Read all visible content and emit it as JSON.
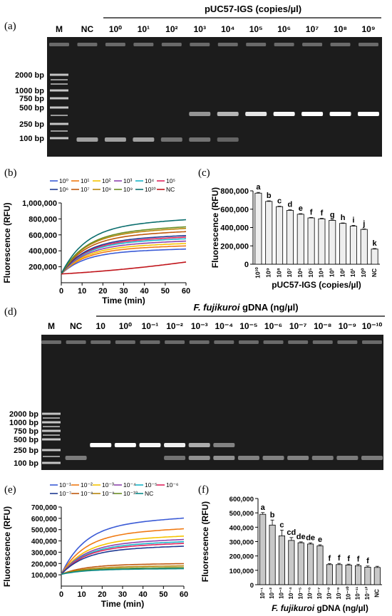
{
  "colors": {
    "gel_bg": "#1c1c1c",
    "band": "#f0f0f0",
    "bar_c": "#eeeeee",
    "bar_f": "#c8c8c8"
  },
  "panels": {
    "a": {
      "letter": "(a)"
    },
    "b": {
      "letter": "(b)"
    },
    "c": {
      "letter": "(c)"
    },
    "d": {
      "letter": "(d)"
    },
    "e": {
      "letter": "(e)"
    },
    "f": {
      "letter": "(f)"
    }
  },
  "gel_a": {
    "header": "pUC57-IGS (copies/µl)",
    "lane_labels": [
      "M",
      "NC",
      "10⁰",
      "10¹",
      "10²",
      "10³",
      "10⁴",
      "10⁵",
      "10⁶",
      "10⁷",
      "10⁸",
      "10⁹"
    ],
    "marker_labels": [
      "2000 bp",
      "1000 bp",
      "750 bp",
      "500 bp",
      "250 bp",
      "100 bp"
    ],
    "band_250_intensity": [
      0,
      0,
      0,
      0,
      0,
      0.35,
      0.55,
      0.85,
      0.95,
      1,
      1,
      1
    ],
    "band_100_intensity": [
      0,
      0.6,
      0.6,
      0.6,
      0.3,
      0.3,
      0.2,
      0,
      0,
      0,
      0,
      0
    ]
  },
  "gel_d": {
    "header_italic": "F. fujikuroi",
    "header_rest": " gDNA (ng/µl)",
    "lane_labels": [
      "M",
      "NC",
      "10",
      "10⁰",
      "10⁻¹",
      "10⁻²",
      "10⁻³",
      "10⁻⁴",
      "10⁻⁵",
      "10⁻⁶",
      "10⁻⁷",
      "10⁻⁸",
      "10⁻⁹",
      "10⁻¹⁰"
    ],
    "marker_labels": [
      "2000 bp",
      "1000 bp",
      "750 bp",
      "500 bp",
      "250 bp",
      "100 bp"
    ],
    "band_250_intensity": [
      0,
      0,
      1,
      1,
      0.95,
      0.9,
      0.5,
      0.25,
      0,
      0,
      0,
      0,
      0,
      0
    ],
    "band_100_intensity": [
      0,
      0.35,
      0,
      0,
      0,
      0.3,
      0.5,
      0.5,
      0.4,
      0.4,
      0.4,
      0.35,
      0.35,
      0.35
    ]
  },
  "chart_data": [
    {
      "panel": "b",
      "type": "line",
      "xlabel": "Time (min)",
      "ylabel": "Fluorescence (RFU)",
      "xlim": [
        0,
        60
      ],
      "ylim": [
        0,
        1000000
      ],
      "xticks": [
        "0",
        "10",
        "20",
        "30",
        "40",
        "50",
        "60"
      ],
      "yticks": [
        "200,000",
        "400,000",
        "600,000",
        "800,000",
        "1,000,000"
      ],
      "legend_placement": "top",
      "series": [
        {
          "name": "10⁰",
          "color": "#3b5bd6",
          "plateau": 440000
        },
        {
          "name": "10¹",
          "color": "#f07a12",
          "plateau": 480000
        },
        {
          "name": "10²",
          "color": "#f5c400",
          "plateau": 510000
        },
        {
          "name": "10³",
          "color": "#8e44ad",
          "plateau": 540000
        },
        {
          "name": "10⁴",
          "color": "#19b5c9",
          "plateau": 570000
        },
        {
          "name": "10⁵",
          "color": "#e0245e",
          "plateau": 590000
        },
        {
          "name": "10⁶",
          "color": "#1f3a93",
          "plateau": 610000
        },
        {
          "name": "10⁷",
          "color": "#c0580e",
          "plateau": 660000
        },
        {
          "name": "10⁸",
          "color": "#b8860b",
          "plateau": 700000
        },
        {
          "name": "10⁹",
          "color": "#6b8e23",
          "plateau": 720000
        },
        {
          "name": "10¹⁰",
          "color": "#0b6e6e",
          "plateau": 810000
        },
        {
          "name": "NC",
          "color": "#c0141a",
          "plateau": null,
          "start": 110000,
          "end": 260000
        }
      ]
    },
    {
      "panel": "c",
      "type": "bar",
      "xlabel": "pUC57-IGS (copies/µl)",
      "ylabel": "Fluorescence (RFU)",
      "ylim": [
        0,
        800000
      ],
      "yticks": [
        "0",
        "200,000",
        "400,000",
        "600,000",
        "800,000"
      ],
      "categories": [
        "10¹⁰",
        "10⁹",
        "10⁸",
        "10⁷",
        "10⁶",
        "10⁵",
        "10⁴",
        "10³",
        "10²",
        "10¹",
        "10⁰",
        "NC"
      ],
      "values": [
        775000,
        685000,
        628000,
        587000,
        545000,
        505000,
        495000,
        478000,
        445000,
        415000,
        380000,
        165000
      ],
      "errors": [
        8000,
        6000,
        5000,
        6000,
        6000,
        5000,
        6000,
        5000,
        5000,
        8000,
        5000,
        6000
      ],
      "letters": [
        "a",
        "b",
        "c",
        "d",
        "e",
        "f",
        "f",
        "g",
        "h",
        "i",
        "j",
        "k"
      ]
    },
    {
      "panel": "e",
      "type": "line",
      "xlabel": "Time (min)",
      "ylabel": "Fluorescence (RFU)",
      "xlim": [
        0,
        60
      ],
      "ylim": [
        0,
        700000
      ],
      "xticks": [
        "0",
        "10",
        "20",
        "30",
        "40",
        "50",
        "60"
      ],
      "yticks": [
        "100,000",
        "200,000",
        "300,000",
        "400,000",
        "500,000",
        "600,000",
        "700,000"
      ],
      "legend_placement": "top",
      "series": [
        {
          "name": "10⁻¹",
          "color": "#3b5bd6",
          "plateau": 620000
        },
        {
          "name": "10⁻²",
          "color": "#f07a12",
          "plateau": 525000
        },
        {
          "name": "10⁻³",
          "color": "#f5c400",
          "plateau": 460000
        },
        {
          "name": "10⁻⁴",
          "color": "#8e44ad",
          "plateau": 430000
        },
        {
          "name": "10⁻⁵",
          "color": "#19b5c9",
          "plateau": 410000
        },
        {
          "name": "10⁻⁶",
          "color": "#e0245e",
          "plateau": 395000
        },
        {
          "name": "10⁻⁷",
          "color": "#1f3a93",
          "plateau": 370000
        },
        {
          "name": "10⁻⁸",
          "color": "#c0580e",
          "plateau": 215000
        },
        {
          "name": "10⁻⁹",
          "color": "#b8860b",
          "plateau": 195000
        },
        {
          "name": "10⁻¹⁰",
          "color": "#6b8e23",
          "plateau": 180000
        },
        {
          "name": "NC",
          "color": "#0b8a8a",
          "plateau": 170000
        }
      ]
    },
    {
      "panel": "f",
      "type": "bar",
      "xlabel_italic": "F. fujikuroi",
      "xlabel_rest": " gDNA (ng/µl)",
      "ylabel": "Fluorescence (RFU)",
      "ylim": [
        0,
        600000
      ],
      "yticks": [
        "0",
        "100,000",
        "200,000",
        "300,000",
        "400,000",
        "500,000",
        "600,000"
      ],
      "categories": [
        "10⁻¹",
        "10⁻²",
        "10⁻³",
        "10⁻⁴",
        "10⁻⁵",
        "10⁻⁶",
        "10⁻⁷",
        "10⁻⁸",
        "10⁻⁹",
        "10⁻¹⁰",
        "10⁻¹¹",
        "10⁻¹²",
        "NC"
      ],
      "values": [
        490000,
        415000,
        340000,
        308000,
        292000,
        283000,
        270000,
        140000,
        140000,
        137000,
        132000,
        122000,
        120000
      ],
      "errors": [
        12000,
        35000,
        40000,
        20000,
        6000,
        8000,
        8000,
        6000,
        8000,
        6000,
        10000,
        8000,
        8000
      ],
      "letters": [
        "a",
        "b",
        "c",
        "cd",
        "de",
        "de",
        "e",
        "f",
        "f",
        "f",
        "f",
        "f",
        ""
      ]
    }
  ]
}
